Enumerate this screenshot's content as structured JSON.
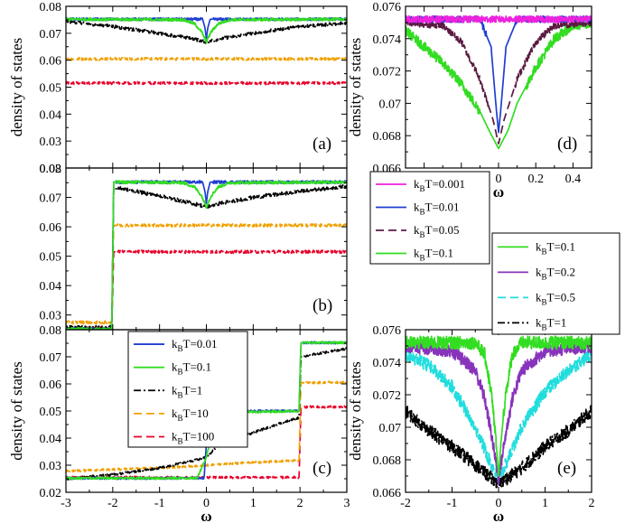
{
  "chart_data": [
    {
      "id": "a",
      "type": "line",
      "panel_label": "(a)",
      "xlim": [
        -3,
        3
      ],
      "ylim": [
        0.02,
        0.08
      ],
      "ylabel": "density of states",
      "xlabel": "",
      "yticks": [
        "0.02",
        "0.03",
        "0.04",
        "0.05",
        "0.06",
        "0.07",
        "0.08"
      ],
      "xticks": [],
      "series": [
        {
          "color": "#e8002a",
          "dash": "dash",
          "noise": 0.0005,
          "points": [
            [
              -3,
              0.0515
            ],
            [
              3,
              0.0515
            ]
          ]
        },
        {
          "color": "#f0a000",
          "dash": "dash",
          "noise": 0.0005,
          "points": [
            [
              -3,
              0.0605
            ],
            [
              3,
              0.0605
            ]
          ]
        },
        {
          "color": "#000000",
          "dash": "dashdot",
          "noise": 0.0006,
          "points": [
            [
              -3,
              0.0745
            ],
            [
              -2,
              0.0725
            ],
            [
              -1,
              0.07
            ],
            [
              -0.3,
              0.068
            ],
            [
              0,
              0.0668
            ],
            [
              0.3,
              0.068
            ],
            [
              1,
              0.07
            ],
            [
              2,
              0.0725
            ],
            [
              3,
              0.0738
            ]
          ]
        },
        {
          "color": "#1f3fd0",
          "dash": "solid",
          "noise": 0.0005,
          "points": [
            [
              -3,
              0.0752
            ],
            [
              -0.08,
              0.0752
            ],
            [
              -0.03,
              0.072
            ],
            [
              0,
              0.068
            ],
            [
              0.03,
              0.072
            ],
            [
              0.08,
              0.0752
            ],
            [
              3,
              0.0752
            ]
          ]
        },
        {
          "color": "#33dd22",
          "dash": "solid",
          "noise": 0.0005,
          "points": [
            [
              -3,
              0.0752
            ],
            [
              -0.5,
              0.075
            ],
            [
              -0.25,
              0.0735
            ],
            [
              -0.1,
              0.0705
            ],
            [
              0,
              0.0668
            ],
            [
              0.1,
              0.0705
            ],
            [
              0.25,
              0.0735
            ],
            [
              0.5,
              0.075
            ],
            [
              3,
              0.0752
            ]
          ]
        }
      ]
    },
    {
      "id": "b",
      "type": "line",
      "panel_label": "(b)",
      "xlim": [
        -3,
        3
      ],
      "ylim": [
        0.025,
        0.08
      ],
      "ylabel": "",
      "xlabel": "",
      "yticks": [
        "0.03",
        "0.04",
        "0.05",
        "0.06",
        "0.07",
        "0.08"
      ],
      "xticks": [],
      "series": [
        {
          "color": "#e8002a",
          "dash": "dash",
          "noise": 0.0005,
          "points": [
            [
              -3,
              0.0255
            ],
            [
              -2.02,
              0.0255
            ],
            [
              -1.98,
              0.0515
            ],
            [
              3,
              0.0515
            ]
          ]
        },
        {
          "color": "#f0a000",
          "dash": "dash",
          "noise": 0.0005,
          "points": [
            [
              -3,
              0.0275
            ],
            [
              -2.02,
              0.0275
            ],
            [
              -1.98,
              0.0605
            ],
            [
              3,
              0.0605
            ]
          ]
        },
        {
          "color": "#000000",
          "dash": "dashdot",
          "noise": 0.0006,
          "points": [
            [
              -3,
              0.0258
            ],
            [
              -2.02,
              0.0258
            ],
            [
              -1.98,
              0.0735
            ],
            [
              -1,
              0.0705
            ],
            [
              -0.3,
              0.068
            ],
            [
              0,
              0.0668
            ],
            [
              0.3,
              0.068
            ],
            [
              1,
              0.07
            ],
            [
              2,
              0.072
            ],
            [
              3,
              0.0738
            ]
          ]
        },
        {
          "color": "#1f3fd0",
          "dash": "solid",
          "noise": 0.0005,
          "points": [
            [
              -3,
              0.0252
            ],
            [
              -2.02,
              0.0252
            ],
            [
              -1.98,
              0.0752
            ],
            [
              -0.08,
              0.0752
            ],
            [
              -0.03,
              0.072
            ],
            [
              0,
              0.068
            ],
            [
              0.03,
              0.072
            ],
            [
              0.08,
              0.0752
            ],
            [
              3,
              0.0752
            ]
          ]
        },
        {
          "color": "#33dd22",
          "dash": "solid",
          "noise": 0.0005,
          "points": [
            [
              -3,
              0.0252
            ],
            [
              -2.02,
              0.0252
            ],
            [
              -1.98,
              0.0752
            ],
            [
              -0.5,
              0.075
            ],
            [
              -0.25,
              0.0735
            ],
            [
              -0.1,
              0.0705
            ],
            [
              0,
              0.0668
            ],
            [
              0.1,
              0.0705
            ],
            [
              0.25,
              0.0735
            ],
            [
              0.5,
              0.075
            ],
            [
              3,
              0.0752
            ]
          ]
        }
      ]
    },
    {
      "id": "c",
      "type": "line",
      "panel_label": "(c)",
      "xlim": [
        -3,
        3
      ],
      "ylim": [
        0.02,
        0.08
      ],
      "ylabel": "density of states",
      "xlabel": "ω",
      "yticks": [
        "0.02",
        "0.03",
        "0.04",
        "0.05",
        "0.06",
        "0.07",
        "0.08"
      ],
      "xticks": [
        "-3",
        "-2",
        "-1",
        "0",
        "1",
        "2",
        "3"
      ],
      "legend": [
        {
          "label": "k",
          "sub": "B",
          "rest": "T=0.01",
          "color": "#1f3fd0",
          "dash": "solid"
        },
        {
          "label": "k",
          "sub": "B",
          "rest": "T=0.1",
          "color": "#33dd22",
          "dash": "solid"
        },
        {
          "label": "k",
          "sub": "B",
          "rest": "T=1",
          "color": "#000000",
          "dash": "dashdot"
        },
        {
          "label": "k",
          "sub": "B",
          "rest": "T=10",
          "color": "#f0a000",
          "dash": "dash"
        },
        {
          "label": "k",
          "sub": "B",
          "rest": "T=100",
          "color": "#e8002a",
          "dash": "dash"
        }
      ],
      "series": [
        {
          "color": "#e8002a",
          "dash": "dash",
          "noise": 0.0004,
          "points": [
            [
              -3,
              0.0255
            ],
            [
              1.98,
              0.0255
            ],
            [
              2.02,
              0.0515
            ],
            [
              3,
              0.0515
            ]
          ]
        },
        {
          "color": "#f0a000",
          "dash": "dash",
          "noise": 0.0004,
          "points": [
            [
              -3,
              0.0278
            ],
            [
              -1,
              0.029
            ],
            [
              0,
              0.03
            ],
            [
              1,
              0.031
            ],
            [
              1.98,
              0.0318
            ],
            [
              2.02,
              0.0605
            ],
            [
              3,
              0.0605
            ]
          ]
        },
        {
          "color": "#000000",
          "dash": "dashdot",
          "noise": 0.0004,
          "points": [
            [
              -3,
              0.025
            ],
            [
              -2,
              0.0265
            ],
            [
              -1,
              0.029
            ],
            [
              -0.3,
              0.0315
            ],
            [
              0,
              0.033
            ],
            [
              0.3,
              0.038
            ],
            [
              1,
              0.042
            ],
            [
              1.5,
              0.045
            ],
            [
              1.98,
              0.0475
            ],
            [
              2.02,
              0.07
            ],
            [
              2.5,
              0.0715
            ],
            [
              3,
              0.073
            ]
          ]
        },
        {
          "color": "#1f3fd0",
          "dash": "solid",
          "noise": 0.0004,
          "points": [
            [
              -3,
              0.0252
            ],
            [
              -0.05,
              0.0252
            ],
            [
              0.05,
              0.05
            ],
            [
              1.98,
              0.05
            ],
            [
              2.02,
              0.0752
            ],
            [
              3,
              0.0752
            ]
          ]
        },
        {
          "color": "#33dd22",
          "dash": "solid",
          "noise": 0.0004,
          "points": [
            [
              -3,
              0.0252
            ],
            [
              -0.2,
              0.0252
            ],
            [
              0,
              0.033
            ],
            [
              0.15,
              0.044
            ],
            [
              0.3,
              0.048
            ],
            [
              0.6,
              0.0495
            ],
            [
              1.98,
              0.05
            ],
            [
              2.02,
              0.0752
            ],
            [
              3,
              0.0752
            ]
          ]
        }
      ]
    },
    {
      "id": "d",
      "type": "line",
      "panel_label": "(d)",
      "xlim": [
        -0.5,
        0.5
      ],
      "ylim": [
        0.066,
        0.076
      ],
      "ylabel": "density of states",
      "xlabel": "ω",
      "yticks": [
        "0.066",
        "0.068",
        "0.07",
        "0.072",
        "0.074",
        "0.076"
      ],
      "xticks": [
        "0",
        "0.2",
        "0.4"
      ],
      "legend": [
        {
          "label": "k",
          "sub": "B",
          "rest": "T=0.001",
          "color": "#ee22dd",
          "dash": "solid"
        },
        {
          "label": "k",
          "sub": "B",
          "rest": "T=0.01",
          "color": "#1f3fd0",
          "dash": "solid"
        },
        {
          "label": "k",
          "sub": "B",
          "rest": "T=0.05",
          "color": "#5a1a40",
          "dash": "dash"
        },
        {
          "label": "k",
          "sub": "B",
          "rest": "T=0.1",
          "color": "#33dd22",
          "dash": "solid"
        }
      ],
      "series": [
        {
          "color": "#33dd22",
          "dash": "solid",
          "noise": 0.0003,
          "points": [
            [
              -0.5,
              0.0745
            ],
            [
              -0.4,
              0.0735
            ],
            [
              -0.3,
              0.0725
            ],
            [
              -0.2,
              0.0712
            ],
            [
              -0.1,
              0.0695
            ],
            [
              -0.05,
              0.0683
            ],
            [
              0,
              0.0672
            ],
            [
              0.05,
              0.0683
            ],
            [
              0.1,
              0.07
            ],
            [
              0.2,
              0.0722
            ],
            [
              0.3,
              0.074
            ],
            [
              0.4,
              0.0748
            ],
            [
              0.5,
              0.075
            ]
          ]
        },
        {
          "color": "#5a1a40",
          "dash": "dash",
          "noise": 0.0002,
          "points": [
            [
              -0.5,
              0.075
            ],
            [
              -0.3,
              0.0748
            ],
            [
              -0.2,
              0.0738
            ],
            [
              -0.1,
              0.0715
            ],
            [
              -0.03,
              0.069
            ],
            [
              0,
              0.0675
            ],
            [
              0.03,
              0.069
            ],
            [
              0.1,
              0.0715
            ],
            [
              0.2,
              0.0738
            ],
            [
              0.3,
              0.0748
            ],
            [
              0.5,
              0.075
            ]
          ]
        },
        {
          "color": "#1f3fd0",
          "dash": "solid",
          "noise": 0.0002,
          "points": [
            [
              -0.5,
              0.0752
            ],
            [
              -0.1,
              0.0752
            ],
            [
              -0.04,
              0.0735
            ],
            [
              -0.015,
              0.07
            ],
            [
              0,
              0.0682
            ],
            [
              0.015,
              0.07
            ],
            [
              0.04,
              0.0735
            ],
            [
              0.1,
              0.0752
            ],
            [
              0.5,
              0.0752
            ]
          ]
        },
        {
          "color": "#ee22dd",
          "dash": "solid",
          "noise": 0.0002,
          "points": [
            [
              -0.5,
              0.0752
            ],
            [
              0.5,
              0.0752
            ]
          ]
        }
      ]
    },
    {
      "id": "e",
      "type": "line",
      "panel_label": "(e)",
      "xlim": [
        -2,
        2
      ],
      "ylim": [
        0.066,
        0.076
      ],
      "ylabel": "density of states",
      "xlabel": "ω",
      "yticks": [
        "0.066",
        "0.068",
        "0.07",
        "0.072",
        "0.074",
        "0.076"
      ],
      "xticks": [
        "-2",
        "-1",
        "0",
        "1",
        "2"
      ],
      "legend": [
        {
          "label": "k",
          "sub": "B",
          "rest": "T=0.1",
          "color": "#33dd22",
          "dash": "solid"
        },
        {
          "label": "k",
          "sub": "B",
          "rest": "T=0.2",
          "color": "#8833bb",
          "dash": "solid"
        },
        {
          "label": "k",
          "sub": "B",
          "rest": "T=0.5",
          "color": "#22dddd",
          "dash": "dash"
        },
        {
          "label": "k",
          "sub": "B",
          "rest": "T=1",
          "color": "#000000",
          "dash": "dashdot"
        }
      ],
      "series": [
        {
          "color": "#000000",
          "dash": "dashdot",
          "noise": 0.0004,
          "points": [
            [
              -2,
              0.071
            ],
            [
              -1.5,
              0.0698
            ],
            [
              -1,
              0.0688
            ],
            [
              -0.5,
              0.0677
            ],
            [
              0,
              0.0665
            ],
            [
              0.5,
              0.0675
            ],
            [
              1,
              0.0688
            ],
            [
              1.5,
              0.0698
            ],
            [
              2,
              0.071
            ]
          ]
        },
        {
          "color": "#22dddd",
          "dash": "dash",
          "noise": 0.0004,
          "points": [
            [
              -2,
              0.0745
            ],
            [
              -1.5,
              0.0738
            ],
            [
              -1,
              0.0725
            ],
            [
              -0.5,
              0.07
            ],
            [
              -0.2,
              0.068
            ],
            [
              0,
              0.0668
            ],
            [
              0.2,
              0.068
            ],
            [
              0.5,
              0.07
            ],
            [
              1,
              0.0722
            ],
            [
              1.5,
              0.0735
            ],
            [
              2,
              0.0745
            ]
          ]
        },
        {
          "color": "#8833bb",
          "dash": "solid",
          "noise": 0.0004,
          "points": [
            [
              -2,
              0.075
            ],
            [
              -1,
              0.0747
            ],
            [
              -0.5,
              0.0735
            ],
            [
              -0.3,
              0.0718
            ],
            [
              -0.15,
              0.0695
            ],
            [
              0,
              0.0668
            ],
            [
              0.15,
              0.0695
            ],
            [
              0.3,
              0.0718
            ],
            [
              0.5,
              0.0735
            ],
            [
              1,
              0.0747
            ],
            [
              2,
              0.075
            ]
          ]
        },
        {
          "color": "#33dd22",
          "dash": "solid",
          "noise": 0.0004,
          "points": [
            [
              -2,
              0.0752
            ],
            [
              -0.5,
              0.0752
            ],
            [
              -0.3,
              0.0745
            ],
            [
              -0.15,
              0.072
            ],
            [
              -0.05,
              0.069
            ],
            [
              0,
              0.067
            ],
            [
              0.05,
              0.069
            ],
            [
              0.15,
              0.072
            ],
            [
              0.3,
              0.0745
            ],
            [
              0.5,
              0.0752
            ],
            [
              2,
              0.0752
            ]
          ]
        }
      ]
    }
  ]
}
